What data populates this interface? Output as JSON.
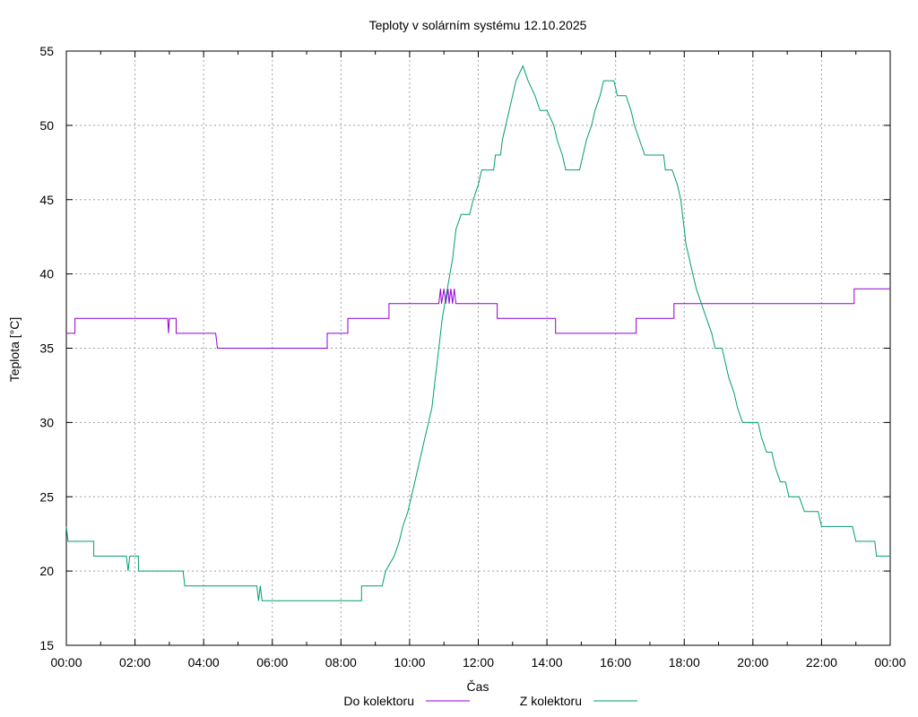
{
  "chart_data": {
    "type": "line",
    "title": "Teploty v solárním systému 12.10.2025",
    "xlabel": "Čas",
    "ylabel": "Teplota [°C]",
    "xlim": [
      0,
      24
    ],
    "ylim": [
      15,
      55
    ],
    "grid": true,
    "legend_position": "bottom",
    "x_tick_labels": [
      "00:00",
      "02:00",
      "04:00",
      "06:00",
      "08:00",
      "10:00",
      "12:00",
      "14:00",
      "16:00",
      "18:00",
      "20:00",
      "22:00",
      "00:00"
    ],
    "y_tick_labels": [
      "15",
      "20",
      "25",
      "30",
      "35",
      "40",
      "45",
      "50",
      "55"
    ],
    "colors": {
      "do_kolektoru": "#9400d3",
      "z_kolektoru": "#009e73"
    },
    "series": [
      {
        "name": "Do kolektoru",
        "points": [
          [
            0,
            36
          ],
          [
            0.25,
            36
          ],
          [
            0.25,
            37
          ],
          [
            2.95,
            37
          ],
          [
            2.98,
            36
          ],
          [
            3.0,
            37
          ],
          [
            3.2,
            37
          ],
          [
            3.2,
            36
          ],
          [
            4.35,
            36
          ],
          [
            4.4,
            35
          ],
          [
            7.6,
            35
          ],
          [
            7.6,
            36
          ],
          [
            8.2,
            36
          ],
          [
            8.2,
            37
          ],
          [
            9.4,
            37
          ],
          [
            9.4,
            38
          ],
          [
            10.85,
            38
          ],
          [
            10.9,
            39
          ],
          [
            10.93,
            38
          ],
          [
            11.0,
            39
          ],
          [
            11.05,
            38
          ],
          [
            11.12,
            39
          ],
          [
            11.15,
            38
          ],
          [
            11.2,
            39
          ],
          [
            11.25,
            38
          ],
          [
            11.3,
            39
          ],
          [
            11.35,
            38
          ],
          [
            12.55,
            38
          ],
          [
            12.55,
            37
          ],
          [
            14.25,
            37
          ],
          [
            14.25,
            36
          ],
          [
            16.6,
            36
          ],
          [
            16.6,
            37
          ],
          [
            17.7,
            37
          ],
          [
            17.7,
            38
          ],
          [
            22.95,
            38
          ],
          [
            22.95,
            39
          ],
          [
            24,
            39
          ]
        ]
      },
      {
        "name": "Z kolektoru",
        "points": [
          [
            0,
            23
          ],
          [
            0.05,
            22
          ],
          [
            0.8,
            22
          ],
          [
            0.8,
            21
          ],
          [
            1.75,
            21
          ],
          [
            1.8,
            20
          ],
          [
            1.85,
            21
          ],
          [
            2.1,
            21
          ],
          [
            2.1,
            20
          ],
          [
            3.4,
            20
          ],
          [
            3.45,
            19
          ],
          [
            5.55,
            19
          ],
          [
            5.6,
            18
          ],
          [
            5.65,
            19
          ],
          [
            5.7,
            18
          ],
          [
            8.6,
            18
          ],
          [
            8.6,
            19
          ],
          [
            9.2,
            19
          ],
          [
            9.3,
            20
          ],
          [
            9.55,
            21
          ],
          [
            9.7,
            22
          ],
          [
            9.8,
            23
          ],
          [
            9.95,
            24
          ],
          [
            10.05,
            25
          ],
          [
            10.15,
            26
          ],
          [
            10.25,
            27
          ],
          [
            10.35,
            28
          ],
          [
            10.45,
            29
          ],
          [
            10.55,
            30
          ],
          [
            10.65,
            31
          ],
          [
            10.75,
            33
          ],
          [
            10.85,
            35
          ],
          [
            10.95,
            37
          ],
          [
            11.1,
            39
          ],
          [
            11.25,
            41
          ],
          [
            11.35,
            43
          ],
          [
            11.5,
            44
          ],
          [
            11.75,
            44
          ],
          [
            11.85,
            45
          ],
          [
            12.0,
            46
          ],
          [
            12.1,
            47
          ],
          [
            12.45,
            47
          ],
          [
            12.5,
            48
          ],
          [
            12.65,
            48
          ],
          [
            12.7,
            49
          ],
          [
            12.8,
            50
          ],
          [
            12.9,
            51
          ],
          [
            13.0,
            52
          ],
          [
            13.1,
            53
          ],
          [
            13.3,
            54
          ],
          [
            13.45,
            53
          ],
          [
            13.65,
            52
          ],
          [
            13.8,
            51
          ],
          [
            14.0,
            51
          ],
          [
            14.2,
            50
          ],
          [
            14.3,
            49
          ],
          [
            14.45,
            48
          ],
          [
            14.55,
            47
          ],
          [
            14.95,
            47
          ],
          [
            15.05,
            48
          ],
          [
            15.15,
            49
          ],
          [
            15.3,
            50
          ],
          [
            15.4,
            51
          ],
          [
            15.55,
            52
          ],
          [
            15.65,
            53
          ],
          [
            15.95,
            53
          ],
          [
            16.05,
            52
          ],
          [
            16.3,
            52
          ],
          [
            16.45,
            51
          ],
          [
            16.55,
            50
          ],
          [
            16.7,
            49
          ],
          [
            16.85,
            48
          ],
          [
            17.4,
            48
          ],
          [
            17.45,
            47
          ],
          [
            17.65,
            47
          ],
          [
            17.8,
            46
          ],
          [
            17.9,
            45
          ],
          [
            17.95,
            44
          ],
          [
            18.0,
            43
          ],
          [
            18.05,
            42
          ],
          [
            18.15,
            41
          ],
          [
            18.25,
            40
          ],
          [
            18.35,
            39
          ],
          [
            18.5,
            38
          ],
          [
            18.65,
            37
          ],
          [
            18.8,
            36
          ],
          [
            18.9,
            35
          ],
          [
            19.1,
            35
          ],
          [
            19.2,
            34
          ],
          [
            19.3,
            33
          ],
          [
            19.45,
            32
          ],
          [
            19.55,
            31
          ],
          [
            19.7,
            30
          ],
          [
            20.15,
            30
          ],
          [
            20.25,
            29
          ],
          [
            20.4,
            28
          ],
          [
            20.55,
            28
          ],
          [
            20.65,
            27
          ],
          [
            20.8,
            26
          ],
          [
            20.95,
            26
          ],
          [
            21.05,
            25
          ],
          [
            21.35,
            25
          ],
          [
            21.5,
            24
          ],
          [
            21.9,
            24
          ],
          [
            22.0,
            23
          ],
          [
            22.9,
            23
          ],
          [
            23.0,
            22
          ],
          [
            23.55,
            22
          ],
          [
            23.6,
            21
          ],
          [
            24,
            21
          ]
        ]
      }
    ]
  }
}
